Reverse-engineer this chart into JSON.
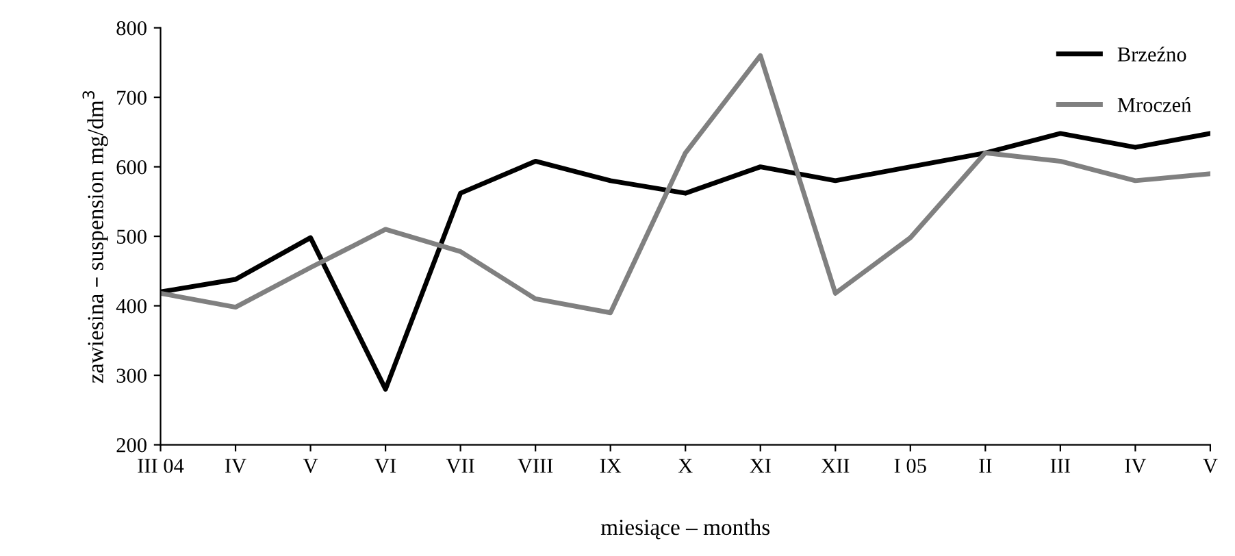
{
  "chart_data": {
    "type": "line",
    "xlabel": "miesiące – months",
    "ylabel": "zawiesina – suspension mg/dm$^{3}$",
    "categories": [
      "III 04",
      "IV",
      "V",
      "VI",
      "VII",
      "VIII",
      "IX",
      "X",
      "XI",
      "XII",
      "I 05",
      "II",
      "III",
      "IV",
      "V"
    ],
    "series": [
      {
        "name": "Brzeźno",
        "color": "#000000",
        "values": [
          420,
          438,
          498,
          280,
          562,
          608,
          580,
          562,
          600,
          580,
          600,
          620,
          648,
          628,
          648
        ]
      },
      {
        "name": "Mroczeń",
        "color": "#808080",
        "values": [
          418,
          398,
          455,
          510,
          478,
          410,
          390,
          620,
          760,
          418,
          498,
          620,
          608,
          580,
          590
        ]
      }
    ],
    "ylim": [
      200,
      800
    ],
    "yticks": [
      200,
      300,
      400,
      500,
      600,
      700,
      800
    ],
    "grid": false,
    "legend": "top right",
    "marker": "none",
    "line_style": "solid"
  }
}
